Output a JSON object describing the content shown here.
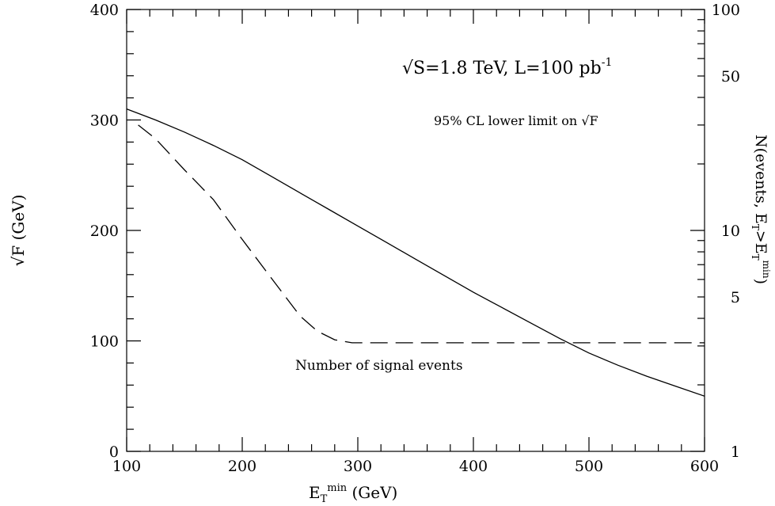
{
  "chart_data": {
    "type": "line",
    "xlabel": "E_T^min (GeV)",
    "xlabel_parts": {
      "base": "E",
      "sub": "T",
      "sup": "min",
      "rest": " (GeV)"
    },
    "ylabel": "√F (GeV)",
    "y2label_parts": {
      "a": "N(events, E",
      "sub1": "T",
      "b": ">E",
      "sub2": "T",
      "sup": "min",
      "c": ")"
    },
    "xlim": [
      100,
      600
    ],
    "ylim": [
      0,
      400
    ],
    "y2lim": [
      1,
      100
    ],
    "y2scale": "log",
    "x_ticks": [
      "100",
      "200",
      "300",
      "400",
      "500",
      "600"
    ],
    "y_ticks": [
      "0",
      "100",
      "200",
      "300",
      "400"
    ],
    "y2_ticks": [
      "1",
      "5",
      "10",
      "50",
      "100"
    ],
    "annotations": {
      "energy": "√S=1.8  TeV,  L=100  pb",
      "energy_sup": "-1",
      "limit": "95%  CL  lower  limit  on  √F",
      "signal": "Number  of  signal  events"
    },
    "series": [
      {
        "axis": "left",
        "style": "solid",
        "x": [
          100,
          125,
          150,
          175,
          200,
          225,
          250,
          275,
          300,
          325,
          350,
          375,
          400,
          425,
          450,
          475,
          500,
          525,
          550,
          575,
          600
        ],
        "y": [
          310,
          300,
          289,
          277,
          264,
          249,
          234,
          219,
          204,
          189,
          174,
          159,
          144,
          130,
          116,
          102,
          89,
          78,
          68,
          59,
          50
        ]
      },
      {
        "axis": "right",
        "style": "dashed",
        "x": [
          110,
          125,
          150,
          175,
          200,
          225,
          250,
          265,
          280,
          295,
          310,
          350,
          400,
          450,
          500,
          550,
          600
        ],
        "y": [
          30,
          26,
          18.8,
          13.8,
          9.1,
          6.1,
          4.1,
          3.5,
          3.2,
          3.1,
          3.1,
          3.1,
          3.1,
          3.1,
          3.1,
          3.1,
          3.1
        ]
      }
    ],
    "grid": false,
    "legend": "none"
  }
}
